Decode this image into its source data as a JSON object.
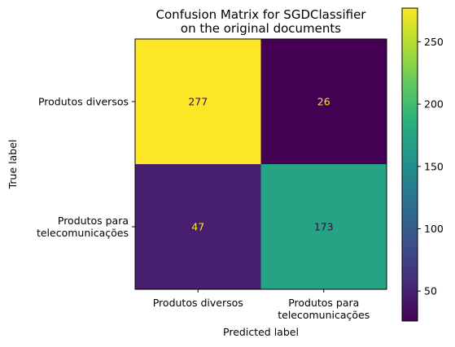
{
  "chart_data": {
    "type": "heatmap",
    "title_lines": [
      "Confusion Matrix for SGDClassifier",
      "on the original documents"
    ],
    "xlabel": "Predicted label",
    "ylabel": "True label",
    "x_categories": [
      [
        "Produtos diversos"
      ],
      [
        "Produtos para",
        "telecomunicações"
      ]
    ],
    "y_categories": [
      [
        "Produtos diversos"
      ],
      [
        "Produtos para",
        "telecomunicações"
      ]
    ],
    "values": [
      [
        277,
        26
      ],
      [
        47,
        173
      ]
    ],
    "colormap": "viridis",
    "color_range": [
      26,
      277
    ],
    "colorbar_ticks": [
      50,
      100,
      150,
      200,
      250
    ],
    "light_text_color": "#fde725",
    "dark_text_color": "#440154"
  }
}
